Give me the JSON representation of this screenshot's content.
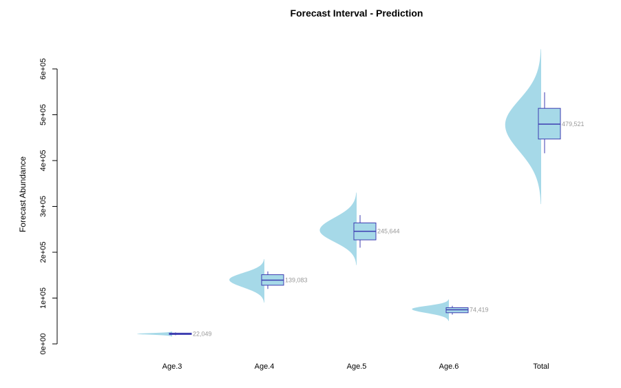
{
  "chart_data": {
    "type": "violin-box",
    "title": "Forecast Interval - Prediction",
    "xlabel": "",
    "ylabel": "Forecast Abundance",
    "ylim": [
      0,
      600000
    ],
    "y_ticks": [
      0,
      100000,
      200000,
      300000,
      400000,
      500000,
      600000
    ],
    "y_tick_labels": [
      "0e+00",
      "1e+05",
      "2e+05",
      "3e+05",
      "4e+05",
      "5e+05",
      "6e+05"
    ],
    "categories": [
      "Age.3",
      "Age.4",
      "Age.5",
      "Age.6",
      "Total"
    ],
    "median_labels": [
      "22,049",
      "139,083",
      "245,644",
      "74,419",
      "479,521"
    ],
    "groups": [
      {
        "category": "Age.3",
        "median": 22049,
        "q1": 20500,
        "q3": 23500,
        "whisker_low": 19000,
        "whisker_high": 25000,
        "violin_low": 16000,
        "violin_high": 27000,
        "violin_mode": 22000,
        "violin_peak_width": 0.38
      },
      {
        "category": "Age.4",
        "median": 139083,
        "q1": 128000,
        "q3": 151000,
        "whisker_low": 120000,
        "whisker_high": 158000,
        "violin_low": 90000,
        "violin_high": 185000,
        "violin_mode": 140000,
        "violin_peak_width": 0.38
      },
      {
        "category": "Age.5",
        "median": 245644,
        "q1": 227000,
        "q3": 264000,
        "whisker_low": 210000,
        "whisker_high": 281000,
        "violin_low": 172000,
        "violin_high": 330000,
        "violin_mode": 248000,
        "violin_peak_width": 0.4
      },
      {
        "category": "Age.6",
        "median": 74419,
        "q1": 68000,
        "q3": 79000,
        "whisker_low": 64000,
        "whisker_high": 83000,
        "violin_low": 50000,
        "violin_high": 97000,
        "violin_mode": 76000,
        "violin_peak_width": 0.4
      },
      {
        "category": "Total",
        "median": 479521,
        "q1": 447000,
        "q3": 514000,
        "whisker_low": 416000,
        "whisker_high": 549000,
        "violin_low": 305000,
        "violin_high": 643000,
        "violin_mode": 478000,
        "violin_peak_width": 0.39
      }
    ],
    "colors": {
      "violin_fill": "#a6d9e8",
      "box_fill": "#a6d9e8",
      "box_stroke": "#3c3cb0",
      "axis": "#000000",
      "value_label": "#999999"
    },
    "grid": false,
    "legend": "none"
  }
}
